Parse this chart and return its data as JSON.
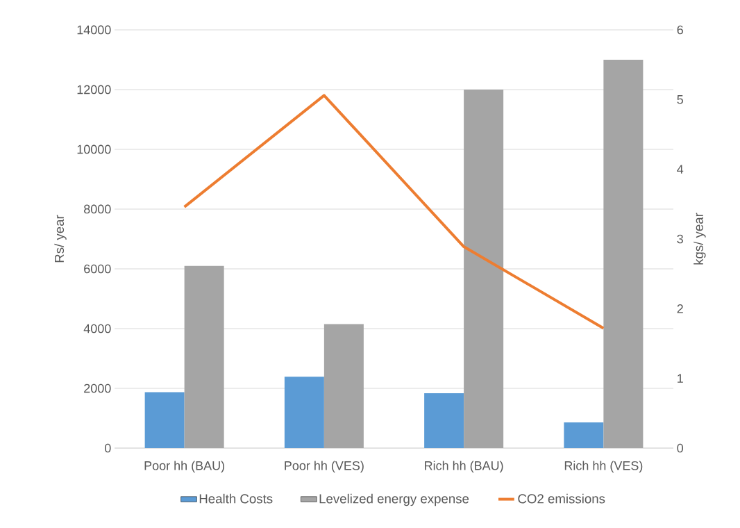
{
  "chart_data": {
    "type": "bar",
    "categories": [
      "Poor hh (BAU)",
      "Poor hh (VES)",
      "Rich hh (BAU)",
      "Rich hh (VES)"
    ],
    "ylabel": "Rs/ year",
    "y2label": "kgs/ year",
    "ylim": [
      0,
      14000
    ],
    "yticks": [
      0,
      2000,
      4000,
      6000,
      8000,
      10000,
      12000,
      14000
    ],
    "y2lim": [
      0,
      6
    ],
    "y2ticks": [
      0,
      1,
      2,
      3,
      4,
      5,
      6
    ],
    "grid": "y",
    "legend": "bottom",
    "series": [
      {
        "name": "Health Costs",
        "color": "#5b9bd5",
        "values": [
          1870,
          2390,
          1840,
          860
        ]
      },
      {
        "name": "Levelized energy expense",
        "color": "#a5a5a5",
        "values": [
          6100,
          4150,
          12000,
          13000
        ]
      },
      {
        "name": "CO2 emissions",
        "type": "line",
        "axis": "y2",
        "color": "#ed7d31",
        "values": [
          3.46,
          5.06,
          2.89,
          1.72
        ]
      }
    ]
  }
}
